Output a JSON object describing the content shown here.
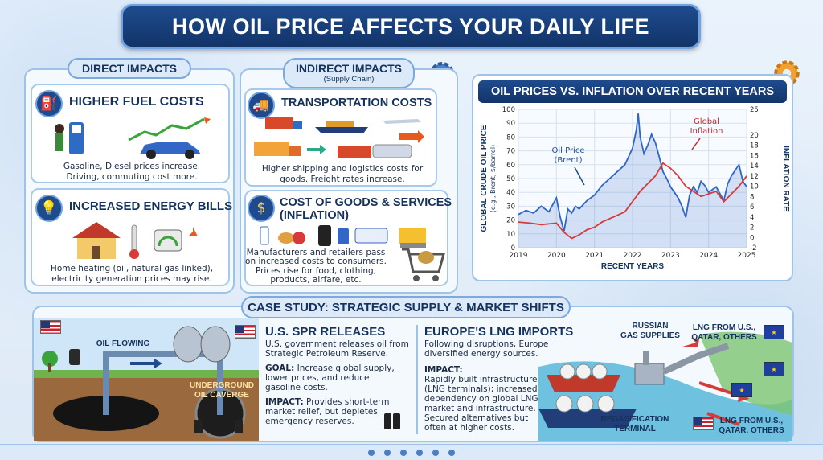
{
  "title": "HOW OIL PRICE AFFECTS YOUR DAILY LIFE",
  "direct": {
    "header": "DIRECT IMPACTS",
    "fuel": {
      "title": "HIGHER FUEL COSTS",
      "text1": "Gasoline, Diesel prices increase.",
      "text2": "Driving, commuting cost more."
    },
    "energy": {
      "title": "INCREASED ENERGY BILLS",
      "text1": "Home heating (oil, natural gas linked),",
      "text2": "electricity generation prices may rise."
    }
  },
  "indirect": {
    "header": "INDIRECT IMPACTS",
    "subheader": "(Supply Chain)",
    "transport": {
      "title": "TRANSPORTATION COSTS",
      "text1": "Higher shipping and logistics costs for",
      "text2": "goods. Freight rates increase."
    },
    "goods": {
      "title1": "COST OF GOODS & SERVICES",
      "title2": "(INFLATION)",
      "text1": "Manufacturers and retailers pass",
      "text2": "on increased costs to consumers.",
      "text3": "Prices rise for food, clothing,",
      "text4": "products, airfare, etc."
    }
  },
  "chart_data": {
    "type": "line",
    "title": "OIL PRICES VS. INFLATION OVER RECENT YEARS",
    "xlabel": "RECENT YEARS",
    "ylabel_left_line1": "GLOBAL CRUDE OIL PRICE",
    "ylabel_left_line2": "(e.g., Brent, $/barrel)",
    "ylabel_right": "INFLATION RATE",
    "x_ticks": [
      "2019",
      "2020",
      "2021",
      "2022",
      "2023",
      "2024",
      "2025"
    ],
    "y_left_ticks": [
      "0",
      "10",
      "20",
      "30",
      "40",
      "50",
      "60",
      "70",
      "80",
      "90",
      "100"
    ],
    "y_right_ticks": [
      "-2",
      "0",
      "2",
      "4",
      "6",
      "8",
      "10",
      "12",
      "14",
      "16",
      "18",
      "20",
      "25"
    ],
    "xlim": [
      2019,
      2025
    ],
    "ylim_left": [
      0,
      100
    ],
    "ylim_right": [
      -2,
      25
    ],
    "annotations": {
      "oil": {
        "line1": "Oil Price",
        "line2": "(Brent)"
      },
      "inflation": {
        "line1": "Global",
        "line2": "Inflation"
      }
    },
    "series": [
      {
        "name": "Oil Price (Brent)",
        "axis": "left",
        "color": "#2f66c4",
        "x": [
          2019.0,
          2019.2,
          2019.4,
          2019.6,
          2019.8,
          2020.0,
          2020.1,
          2020.2,
          2020.3,
          2020.4,
          2020.5,
          2020.6,
          2020.8,
          2021.0,
          2021.2,
          2021.4,
          2021.6,
          2021.8,
          2021.9,
          2022.0,
          2022.1,
          2022.15,
          2022.2,
          2022.3,
          2022.4,
          2022.5,
          2022.6,
          2022.7,
          2022.8,
          2022.9,
          2023.0,
          2023.1,
          2023.2,
          2023.3,
          2023.4,
          2023.5,
          2023.6,
          2023.7,
          2023.8,
          2023.9,
          2024.0,
          2024.2,
          2024.4,
          2024.5,
          2024.6,
          2024.8,
          2024.9,
          2025.0
        ],
        "y": [
          24,
          27,
          25,
          30,
          26,
          36,
          22,
          12,
          28,
          25,
          30,
          28,
          34,
          38,
          45,
          50,
          55,
          60,
          66,
          72,
          85,
          97,
          80,
          68,
          74,
          82,
          76,
          66,
          55,
          50,
          44,
          40,
          36,
          30,
          22,
          38,
          44,
          40,
          48,
          45,
          40,
          44,
          34,
          46,
          52,
          60,
          48,
          44
        ]
      },
      {
        "name": "Global Inflation",
        "axis": "right",
        "color": "#d83a3a",
        "x": [
          2019.0,
          2019.3,
          2019.6,
          2020.0,
          2020.2,
          2020.4,
          2020.6,
          2020.8,
          2021.0,
          2021.2,
          2021.5,
          2021.8,
          2022.0,
          2022.2,
          2022.4,
          2022.6,
          2022.8,
          2023.0,
          2023.2,
          2023.4,
          2023.6,
          2023.8,
          2024.0,
          2024.2,
          2024.4,
          2024.6,
          2024.8,
          2025.0
        ],
        "y": [
          3,
          2.8,
          2.5,
          2.8,
          1.0,
          -0.2,
          0.5,
          1.5,
          2.0,
          3.0,
          4.0,
          5.0,
          7.0,
          9.0,
          10.5,
          12.0,
          14.5,
          13.5,
          12.0,
          10.0,
          9.0,
          8.0,
          8.5,
          9.0,
          7.0,
          8.5,
          10.0,
          12.0
        ]
      }
    ],
    "grid": true,
    "legend": "annotations-in-plot"
  },
  "case": {
    "header": "CASE STUDY: STRATEGIC SUPPLY & MARKET SHIFTS",
    "spr": {
      "title": "U.S. SPR RELEASES",
      "p1a": "U.S. government releases oil from",
      "p1b": "Strategic Petroleum Reserve.",
      "goal_label": "GOAL:",
      "goal_a": " Increase global supply,",
      "goal_b": "lower prices, and reduce",
      "goal_c": "gasoline costs.",
      "impact_label": "IMPACT:",
      "impact_a": " Provides short-term",
      "impact_b": "market relief, but depletes",
      "impact_c": "emergency reserves."
    },
    "illus": {
      "oil_flowing": "OIL FLOWING",
      "cavern1": "UNDERGROUND",
      "cavern2": "OIL CAVERGE"
    },
    "lng": {
      "title": "EUROPE'S LNG IMPORTS",
      "p1a": "Following disruptions, Europe",
      "p1b": "diversified energy sources.",
      "impact_label": "IMPACT:",
      "impact_a": "Rapidly built infrastructure",
      "impact_b": "(LNG terminals); increased",
      "impact_c": "dependency on global LNG",
      "impact_d": "market and infrastructure.",
      "impact_e": "Secured alternatives but",
      "impact_f": "often at higher costs.",
      "russian1": "RUSSIAN",
      "russian2": "GAS SUPPLIES",
      "lng_top1": "LNG FROM U.S.,",
      "lng_top2": "QATAR, OTHERS",
      "regas1": "REGASIFICATION",
      "regas2": "TERMINAL",
      "lng_bot1": "LNG FROM U.S.,",
      "lng_bot2": "QATAR, OTHERS"
    }
  },
  "colors": {
    "navy": "#1f4b8e",
    "oil_line": "#2f66c4",
    "inflation_line": "#d83a3a",
    "accent_orange": "#e86b1c"
  },
  "icons": [
    "gas-pump-icon",
    "lightbulb-icon",
    "truck-icon",
    "money-bag-icon",
    "gear-icon"
  ]
}
